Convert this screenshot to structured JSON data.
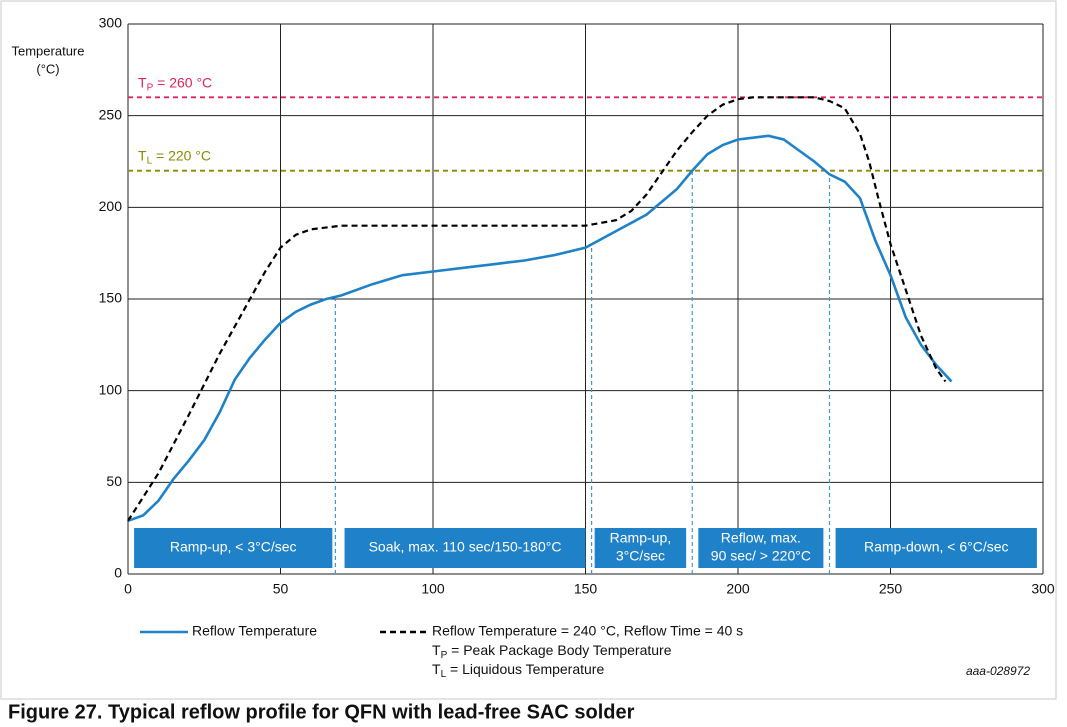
{
  "chart_data": {
    "type": "line",
    "y_label": [
      "Temperature",
      "(°C)"
    ],
    "xlim": [
      0,
      300
    ],
    "ylim": [
      0,
      300
    ],
    "xticks": [
      0,
      50,
      100,
      150,
      200,
      250,
      300
    ],
    "yticks": [
      0,
      50,
      100,
      150,
      200,
      250,
      300
    ],
    "grid": true,
    "series": [
      {
        "name": "Reflow Temperature",
        "color": "#1f82c8",
        "dash": false,
        "x": [
          0,
          5,
          10,
          15,
          20,
          25,
          30,
          35,
          40,
          45,
          50,
          55,
          60,
          65,
          70,
          80,
          90,
          100,
          110,
          120,
          130,
          140,
          150,
          160,
          170,
          180,
          185,
          190,
          195,
          200,
          205,
          210,
          215,
          220,
          225,
          230,
          235,
          240,
          245,
          250,
          255,
          260,
          265,
          270
        ],
        "values": [
          29,
          32,
          40,
          52,
          62,
          73,
          88,
          106,
          118,
          128,
          137,
          143,
          147,
          150,
          152,
          158,
          163,
          165,
          167,
          169,
          171,
          174,
          178,
          187,
          196,
          210,
          220,
          229,
          234,
          237,
          238,
          239,
          237,
          231,
          225,
          218,
          214,
          205,
          182,
          163,
          140,
          125,
          114,
          105
        ]
      },
      {
        "name": "Reflow Temperature = 240 °C, Reflow Time = 40 s",
        "color": "#000000",
        "dash": true,
        "x": [
          0,
          10,
          20,
          30,
          40,
          45,
          50,
          55,
          60,
          70,
          100,
          150,
          160,
          165,
          170,
          175,
          180,
          185,
          190,
          195,
          200,
          205,
          210,
          220,
          225,
          230,
          235,
          240,
          243,
          246,
          250,
          255,
          260,
          265,
          268
        ],
        "values": [
          29,
          55,
          87,
          120,
          150,
          165,
          178,
          185,
          188,
          190,
          190,
          190,
          193,
          198,
          207,
          219,
          231,
          241,
          250,
          256,
          259,
          260,
          260,
          260,
          260,
          258,
          254,
          240,
          225,
          205,
          180,
          155,
          130,
          112,
          105
        ]
      }
    ],
    "reference_lines": [
      {
        "base": "T",
        "sub": "P",
        "rest": " = 260 °C",
        "value": 260,
        "color": "#e0245e"
      },
      {
        "base": "T",
        "sub": "L",
        "rest": " = 220 °C",
        "value": 220,
        "color": "#8a8a00"
      }
    ],
    "phase_boundaries": [
      68,
      152,
      185,
      230
    ],
    "phases": [
      {
        "label": [
          "Ramp-up, < 3°C/sec"
        ],
        "start": 2,
        "end": 67
      },
      {
        "label": [
          "Soak, max. 110 sec/150-180°C"
        ],
        "start": 71,
        "end": 150
      },
      {
        "label": [
          "Ramp-up,",
          "3°C/sec"
        ],
        "start": 153,
        "end": 183
      },
      {
        "label": [
          "Reflow, max.",
          "90 sec/ > 220°C"
        ],
        "start": 187,
        "end": 228
      },
      {
        "label": [
          "Ramp-down, < 6°C/sec"
        ],
        "start": 232,
        "end": 298
      }
    ],
    "notes": [
      {
        "base": "T",
        "sub": "P",
        "rest": " = Peak Package Body Temperature"
      },
      {
        "base": "T",
        "sub": "L",
        "rest": " = Liquidous Temperature"
      }
    ],
    "code": "aaa-028972",
    "caption": "Figure 27.  Typical reflow profile for QFN with lead-free SAC solder"
  }
}
